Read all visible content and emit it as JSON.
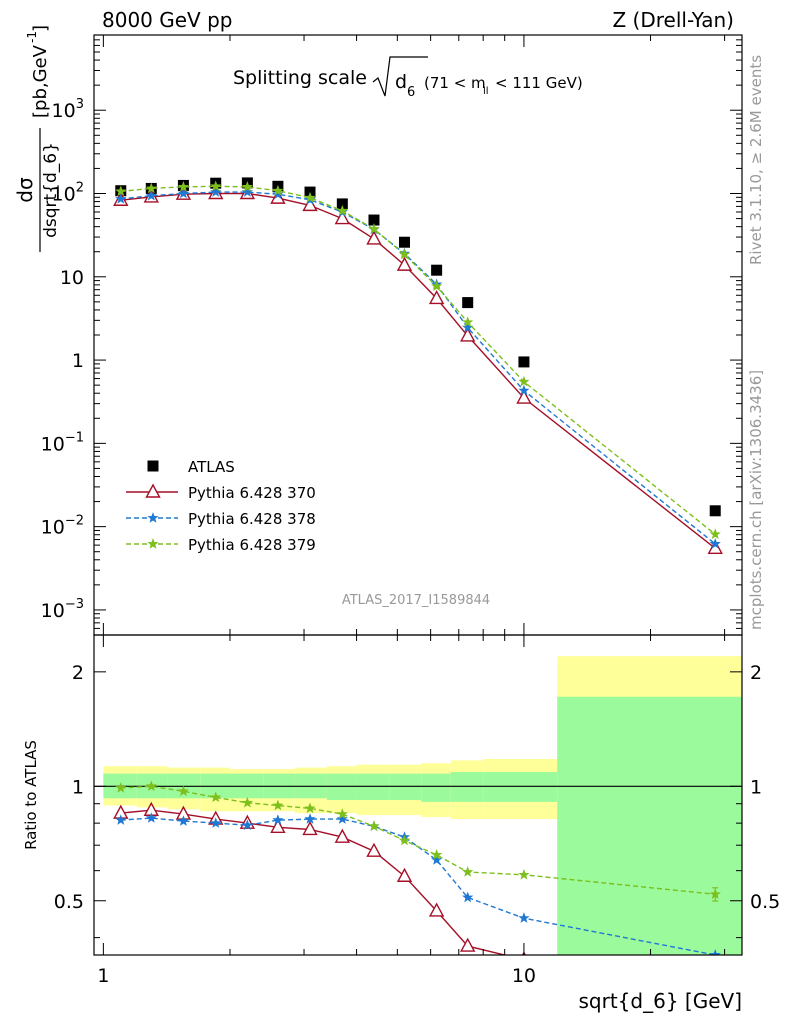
{
  "header": {
    "left": "8000 GeV pp",
    "right": "Z (Drell-Yan)"
  },
  "side_labels": {
    "rivet": "Rivet 3.1.10, ≥ 2.6M events",
    "mcplots": "mcplots.cern.ch [arXiv:1306.3436]"
  },
  "chart_data": [
    {
      "type": "scatter",
      "title": "Splitting scale √d₆ (71 < mₗₗ < 111 GeV)",
      "title_main": "Splitting scale",
      "title_sqrt_symbol": "d",
      "title_sqrt_sub": "6",
      "title_range": "(71 < m",
      "title_range_sub": "ll",
      "title_range_end": "< 111 GeV)",
      "watermark": "ATLAS_2017_I1589844",
      "ylabel_top": "dσ",
      "ylabel_bottom": "dsqrt{d_6}",
      "ylabel_unit": "[pb,GeV",
      "ylabel_unit_sup": "-1",
      "ylabel_unit_end": "]",
      "xscale": "log",
      "yscale": "log",
      "xlim": [
        0.95,
        33
      ],
      "ylim": [
        0.0005,
        8000
      ],
      "ytick_labels": [
        {
          "value": 0.001,
          "base": "10",
          "exp": "−3"
        },
        {
          "value": 0.01,
          "base": "10",
          "exp": "−2"
        },
        {
          "value": 0.1,
          "base": "10",
          "exp": "−1"
        },
        {
          "value": 1,
          "base": "1",
          "exp": ""
        },
        {
          "value": 10,
          "base": "10",
          "exp": ""
        },
        {
          "value": 100,
          "base": "10",
          "exp": "2"
        },
        {
          "value": 1000,
          "base": "10",
          "exp": "3"
        }
      ],
      "legend": {
        "position": "lower-left",
        "entries": [
          "ATLAS",
          "Pythia 6.428 370",
          "Pythia 6.428 378",
          "Pythia 6.428 379"
        ]
      },
      "series": [
        {
          "name": "ATLAS",
          "color": "#000000",
          "marker": "square",
          "line": "none",
          "x": [
            1.1,
            1.3,
            1.55,
            1.85,
            2.2,
            2.6,
            3.1,
            3.7,
            4.4,
            5.2,
            6.2,
            7.35,
            10,
            28.5
          ],
          "y": [
            108,
            115,
            125,
            133,
            134,
            122,
            104,
            75,
            48,
            26,
            12,
            4.9,
            0.95,
            0.0155
          ]
        },
        {
          "name": "Pythia 6.428 370",
          "color": "#a50f27",
          "marker": "triangle",
          "line": "solid",
          "x": [
            1.1,
            1.3,
            1.55,
            1.85,
            2.2,
            2.6,
            3.1,
            3.7,
            4.4,
            5.2,
            6.2,
            7.35,
            10,
            28.5
          ],
          "y": [
            83,
            91,
            98,
            100,
            100,
            88,
            72,
            50,
            28.5,
            13.8,
            5.5,
            1.95,
            0.35,
            0.0055
          ]
        },
        {
          "name": "Pythia 6.428 378",
          "color": "#1f78d4",
          "marker": "star",
          "line": "dashed",
          "x": [
            1.1,
            1.3,
            1.55,
            1.85,
            2.2,
            2.6,
            3.1,
            3.7,
            4.4,
            5.2,
            6.2,
            7.35,
            10,
            28.5
          ],
          "y": [
            86,
            94,
            100,
            104,
            104,
            98,
            84,
            60,
            37,
            19,
            8.1,
            2.45,
            0.43,
            0.0062
          ]
        },
        {
          "name": "Pythia 6.428 379",
          "color": "#7dbf1c",
          "marker": "star",
          "line": "dashed",
          "x": [
            1.1,
            1.3,
            1.55,
            1.85,
            2.2,
            2.6,
            3.1,
            3.7,
            4.4,
            5.2,
            6.2,
            7.35,
            10,
            28.5
          ],
          "y": [
            106,
            115,
            120,
            122,
            120,
            108,
            89,
            62,
            37.5,
            18.5,
            7.7,
            2.85,
            0.55,
            0.0081
          ]
        }
      ]
    },
    {
      "type": "line",
      "ylabel": "Ratio to ATLAS",
      "xlabel": "sqrt{d_6} [GeV]",
      "xscale": "log",
      "yscale": "log",
      "xlim": [
        0.95,
        33
      ],
      "ylim": [
        0.36,
        2.5
      ],
      "xtick_labels": [
        {
          "value": 1,
          "label": "1"
        },
        {
          "value": 10,
          "label": "10"
        }
      ],
      "ytick_labels": [
        {
          "value": 0.5,
          "label": "0.5"
        },
        {
          "value": 1,
          "label": "1"
        },
        {
          "value": 2,
          "label": "2"
        }
      ],
      "uncertainty_bands": {
        "bin_edges": [
          1,
          1.2,
          1.42,
          1.7,
          2.0,
          2.4,
          2.85,
          3.4,
          4.0,
          4.8,
          5.7,
          6.7,
          8.0,
          12,
          33
        ],
        "stat_low": [
          0.93,
          0.93,
          0.93,
          0.93,
          0.93,
          0.93,
          0.93,
          0.92,
          0.92,
          0.92,
          0.91,
          0.91,
          0.91,
          0.33
        ],
        "stat_high": [
          1.08,
          1.08,
          1.08,
          1.08,
          1.08,
          1.08,
          1.08,
          1.08,
          1.08,
          1.08,
          1.08,
          1.09,
          1.09,
          1.72
        ],
        "total_low": [
          0.89,
          0.88,
          0.87,
          0.86,
          0.86,
          0.86,
          0.85,
          0.85,
          0.84,
          0.84,
          0.83,
          0.82,
          0.82,
          0.33
        ],
        "total_high": [
          1.13,
          1.13,
          1.12,
          1.12,
          1.11,
          1.11,
          1.12,
          1.13,
          1.14,
          1.14,
          1.15,
          1.17,
          1.18,
          2.2
        ],
        "stat_color": "#9bfa9b",
        "total_color": "#ffff99"
      },
      "series": [
        {
          "name": "Pythia 6.428 370",
          "color": "#a50f27",
          "x": [
            1.1,
            1.3,
            1.55,
            1.85,
            2.2,
            2.6,
            3.1,
            3.7,
            4.4,
            5.2,
            6.2,
            7.35,
            10
          ],
          "y": [
            0.85,
            0.865,
            0.845,
            0.82,
            0.8,
            0.78,
            0.77,
            0.735,
            0.675,
            0.58,
            0.47,
            0.38,
            0.35
          ]
        },
        {
          "name": "Pythia 6.428 378",
          "color": "#1f78d4",
          "x": [
            1.1,
            1.3,
            1.55,
            1.85,
            2.2,
            2.6,
            3.1,
            3.7,
            4.4,
            5.2,
            6.2,
            7.35,
            10,
            28.5
          ],
          "y": [
            0.815,
            0.825,
            0.81,
            0.8,
            0.79,
            0.815,
            0.82,
            0.82,
            0.785,
            0.735,
            0.64,
            0.51,
            0.45,
            0.36
          ]
        },
        {
          "name": "Pythia 6.428 379",
          "color": "#7dbf1c",
          "x": [
            1.1,
            1.3,
            1.55,
            1.85,
            2.2,
            2.6,
            3.1,
            3.7,
            4.4,
            5.2,
            6.2,
            7.35,
            10,
            28.5
          ],
          "y": [
            0.99,
            1.0,
            0.97,
            0.935,
            0.905,
            0.89,
            0.875,
            0.845,
            0.785,
            0.72,
            0.66,
            0.595,
            0.585,
            0.52
          ]
        }
      ]
    }
  ]
}
